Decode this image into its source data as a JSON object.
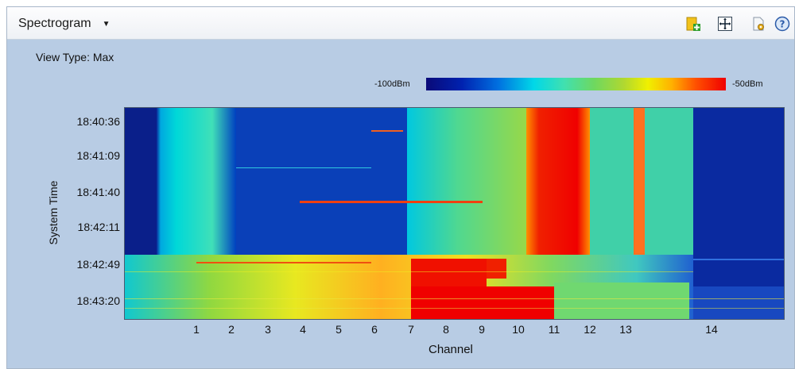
{
  "toolbar": {
    "view_selector": "Spectrogram",
    "icons": [
      "add-panel-icon",
      "fit-view-icon",
      "settings-icon",
      "help-icon"
    ]
  },
  "panel": {
    "view_type": "View Type: Max"
  },
  "colorbar": {
    "min_label": "-100dBm",
    "max_label": "-50dBm"
  },
  "axes": {
    "y_title": "System Time",
    "x_title": "Channel",
    "y_ticks": [
      "18:40:36",
      "18:41:09",
      "18:41:40",
      "18:42:11",
      "18:42:49",
      "18:43:20"
    ],
    "x_ticks": [
      "1",
      "2",
      "3",
      "4",
      "5",
      "6",
      "7",
      "8",
      "9",
      "10",
      "11",
      "12",
      "13",
      "14"
    ]
  },
  "colors": {
    "low": "#0a1f8a",
    "mid": "#6ed860",
    "high": "#f00000",
    "panel_bg": "#b8cce4"
  }
}
